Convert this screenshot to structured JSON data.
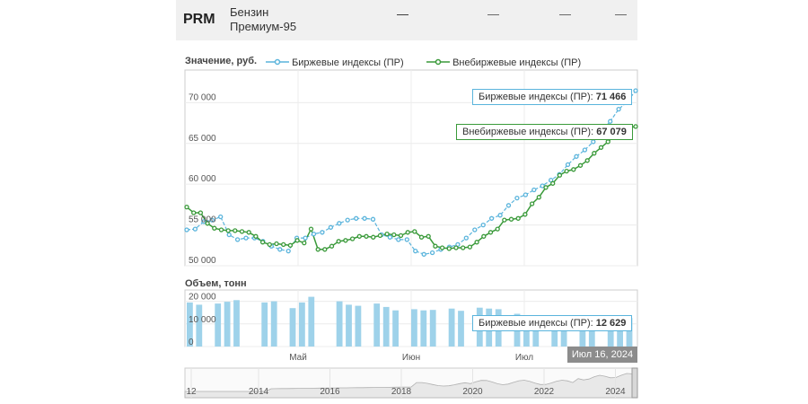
{
  "header": {
    "code": "PRM",
    "name_line1": "Бензин",
    "name_line2": "Премиум-95",
    "dashes": [
      "—",
      "—",
      "—",
      "—",
      "—"
    ]
  },
  "legend": {
    "value_label": "Значение, руб.",
    "series1": "Биржевые индексы (ПР)",
    "series2": "Внебиржевые индексы (ПР)"
  },
  "volume_label": "Объем, тонн",
  "date_label": "Июл 16, 2024",
  "colors": {
    "exchange": "#5ab4dc",
    "otc": "#3a9a3a",
    "bar": "#9ed2ea"
  },
  "tooltips": {
    "exchange": {
      "label": "Биржевые индексы (ПР):",
      "value": "71 466"
    },
    "otc": {
      "label": "Внебиржевые индексы (ПР):",
      "value": "67 079"
    },
    "volume": {
      "label": "Биржевые индексы (ПР):",
      "value": "12 629"
    }
  },
  "chart_data": [
    {
      "type": "line",
      "title": "Значение, руб.",
      "ylim": [
        50000,
        74000
      ],
      "yticks": [
        50000,
        55000,
        60000,
        65000,
        70000
      ],
      "ytick_labels": [
        "50 000",
        "55 000",
        "60 000",
        "65 000",
        "70 000"
      ],
      "xtick_labels": [
        "Май",
        "Июн",
        "Июл"
      ],
      "xtick_pos": [
        0.25,
        0.5,
        0.75
      ],
      "series": [
        {
          "name": "Биржевые индексы (ПР)",
          "values": [
            54400,
            54500,
            55400,
            55600,
            56000,
            53800,
            53200,
            53400,
            53400,
            53000,
            52400,
            52000,
            51800,
            53400,
            53400,
            53900,
            54100,
            54700,
            55200,
            55600,
            55800,
            55800,
            55700,
            53800,
            53500,
            53200,
            53200,
            51800,
            51400,
            51600,
            52000,
            52300,
            52600,
            53400,
            54400,
            55000,
            55800,
            56200,
            57400,
            58300,
            58700,
            59300,
            59800,
            60500,
            61200,
            62400,
            63400,
            64200,
            65200,
            66500,
            67700,
            69200,
            70100,
            71466
          ]
        },
        {
          "name": "Внебиржевые индексы (ПР)",
          "values": [
            57200,
            56500,
            56500,
            55200,
            54600,
            54400,
            54300,
            54300,
            54200,
            54100,
            53600,
            52900,
            52600,
            52700,
            52600,
            52500,
            53100,
            52800,
            54500,
            52000,
            52000,
            52400,
            53000,
            53100,
            53300,
            53600,
            53600,
            53500,
            53700,
            53900,
            53800,
            53700,
            54100,
            54200,
            53500,
            53600,
            52400,
            52200,
            52100,
            52200,
            52200,
            52300,
            52900,
            53600,
            54100,
            54500,
            55600,
            55700,
            55800,
            56300,
            57600,
            58400,
            59600,
            60100,
            61100,
            61600,
            61800,
            62300,
            62900,
            63800,
            64500,
            65200,
            66000,
            66600,
            66900,
            67079
          ]
        }
      ]
    },
    {
      "type": "bar",
      "title": "Объем, тонн",
      "ylim": [
        0,
        25000
      ],
      "yticks": [
        0,
        10000,
        20000
      ],
      "ytick_labels": [
        "0",
        "10 000",
        "20 000"
      ],
      "series": [
        {
          "name": "Биржевые индексы (ПР)",
          "values": [
            19500,
            18500,
            0,
            19000,
            19800,
            20500,
            0,
            0,
            19500,
            20000,
            0,
            17000,
            19500,
            22000,
            0,
            0,
            20000,
            18500,
            18000,
            0,
            19000,
            17500,
            16000,
            0,
            16500,
            16000,
            16200,
            0,
            16800,
            15800,
            0,
            17200,
            16800,
            16500,
            0,
            14500,
            13800,
            12800,
            0,
            13200,
            12500,
            0,
            12900,
            12800,
            0,
            13100,
            12400,
            12629
          ]
        }
      ]
    }
  ],
  "navigator": {
    "labels": [
      "12",
      "2014",
      "2016",
      "2018",
      "2020",
      "2022",
      "2024"
    ]
  }
}
